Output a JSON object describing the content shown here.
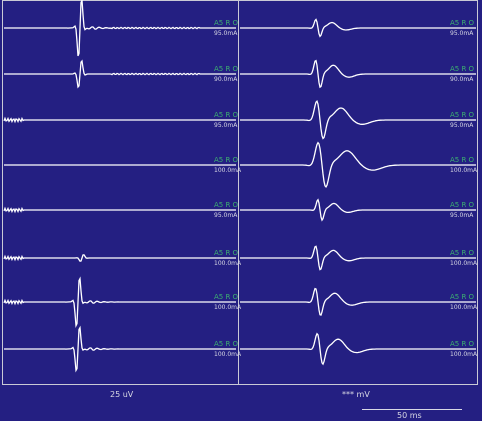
{
  "left_panel": {
    "scale_label": "25 uV",
    "channels": [
      {
        "site": "A5 R O",
        "current": "95.0mA"
      },
      {
        "site": "A5 R O",
        "current": "90.0mA"
      },
      {
        "site": "A5 R O",
        "current": "95.0mA"
      },
      {
        "site": "A5 R O",
        "current": "100.0mA"
      },
      {
        "site": "A5 R O",
        "current": "95.0mA"
      },
      {
        "site": "A5 R O",
        "current": "100.0mA"
      },
      {
        "site": "A5 R O",
        "current": "100.0mA"
      },
      {
        "site": "A5 R O",
        "current": "100.0mA"
      }
    ]
  },
  "right_panel": {
    "scale_label": "*** mV",
    "channels": [
      {
        "site": "A5 R O",
        "current": "95.0mA"
      },
      {
        "site": "A5 R O",
        "current": "90.0mA"
      },
      {
        "site": "A5 R O",
        "current": "95.0mA"
      },
      {
        "site": "A5 R O",
        "current": "100.0mA"
      },
      {
        "site": "A5 R O",
        "current": "95.0mA"
      },
      {
        "site": "A5 R O",
        "current": "100.0mA"
      },
      {
        "site": "A5 R O",
        "current": "100.0mA"
      },
      {
        "site": "A5 R O",
        "current": "100.0mA"
      }
    ]
  },
  "time_scale_label": "50 ms",
  "colors": {
    "background": "#241f82",
    "trace": "#ffffff",
    "site_label": "#3cb070",
    "frame": "#c9c9d6"
  }
}
